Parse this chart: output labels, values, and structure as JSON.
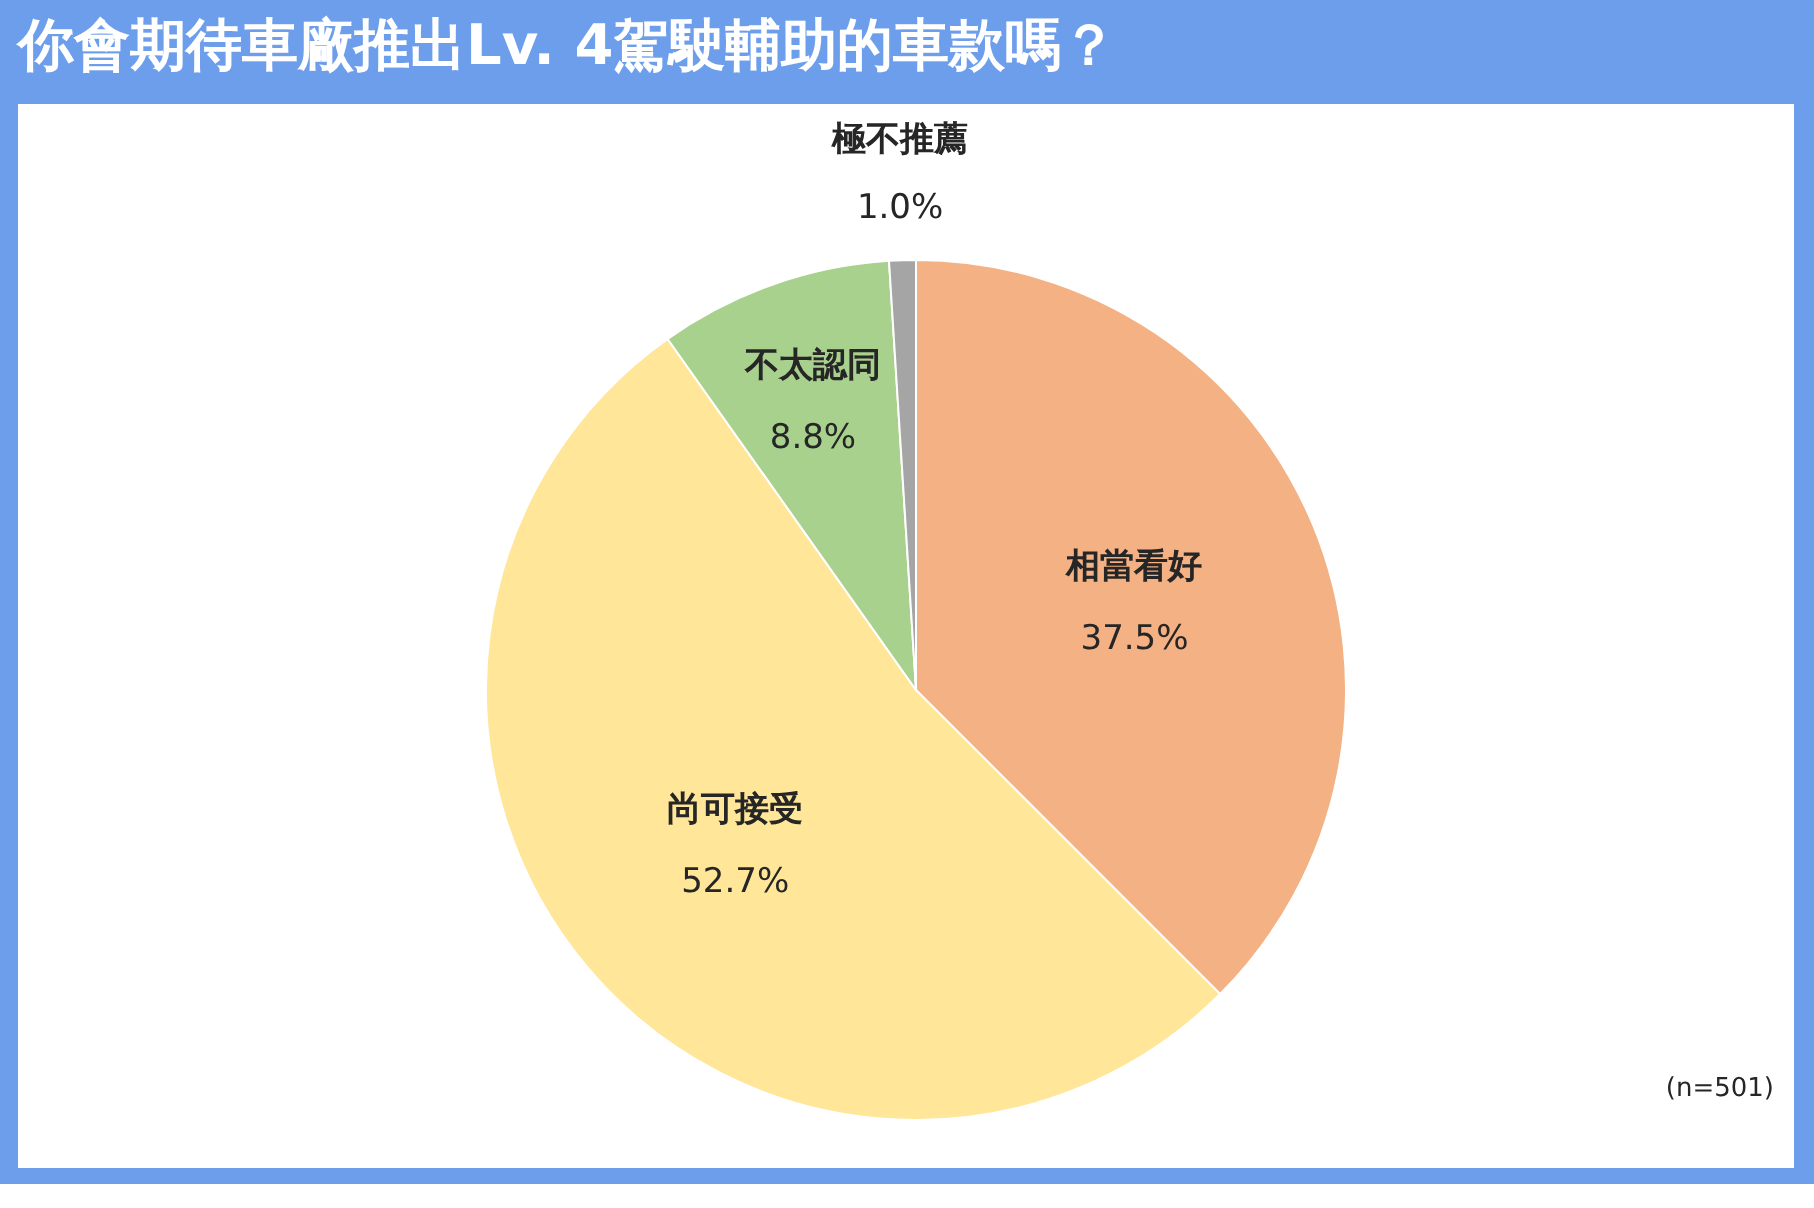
{
  "chart_data": {
    "type": "pie",
    "title": "你會期待車廠推出Lv. 4駕駛輔助的車款嗎？",
    "categories": [
      "相當看好",
      "尚可接受",
      "不太認同",
      "極不推薦"
    ],
    "values": [
      37.5,
      52.7,
      8.8,
      1.0
    ],
    "colors": [
      "#f4b183",
      "#ffe699",
      "#a9d18e",
      "#a5a5a5"
    ],
    "value_labels": [
      "37.5%",
      "52.7%",
      "8.8%",
      "1.0%"
    ],
    "annotations": [
      "(n=501)"
    ],
    "legend": false
  }
}
